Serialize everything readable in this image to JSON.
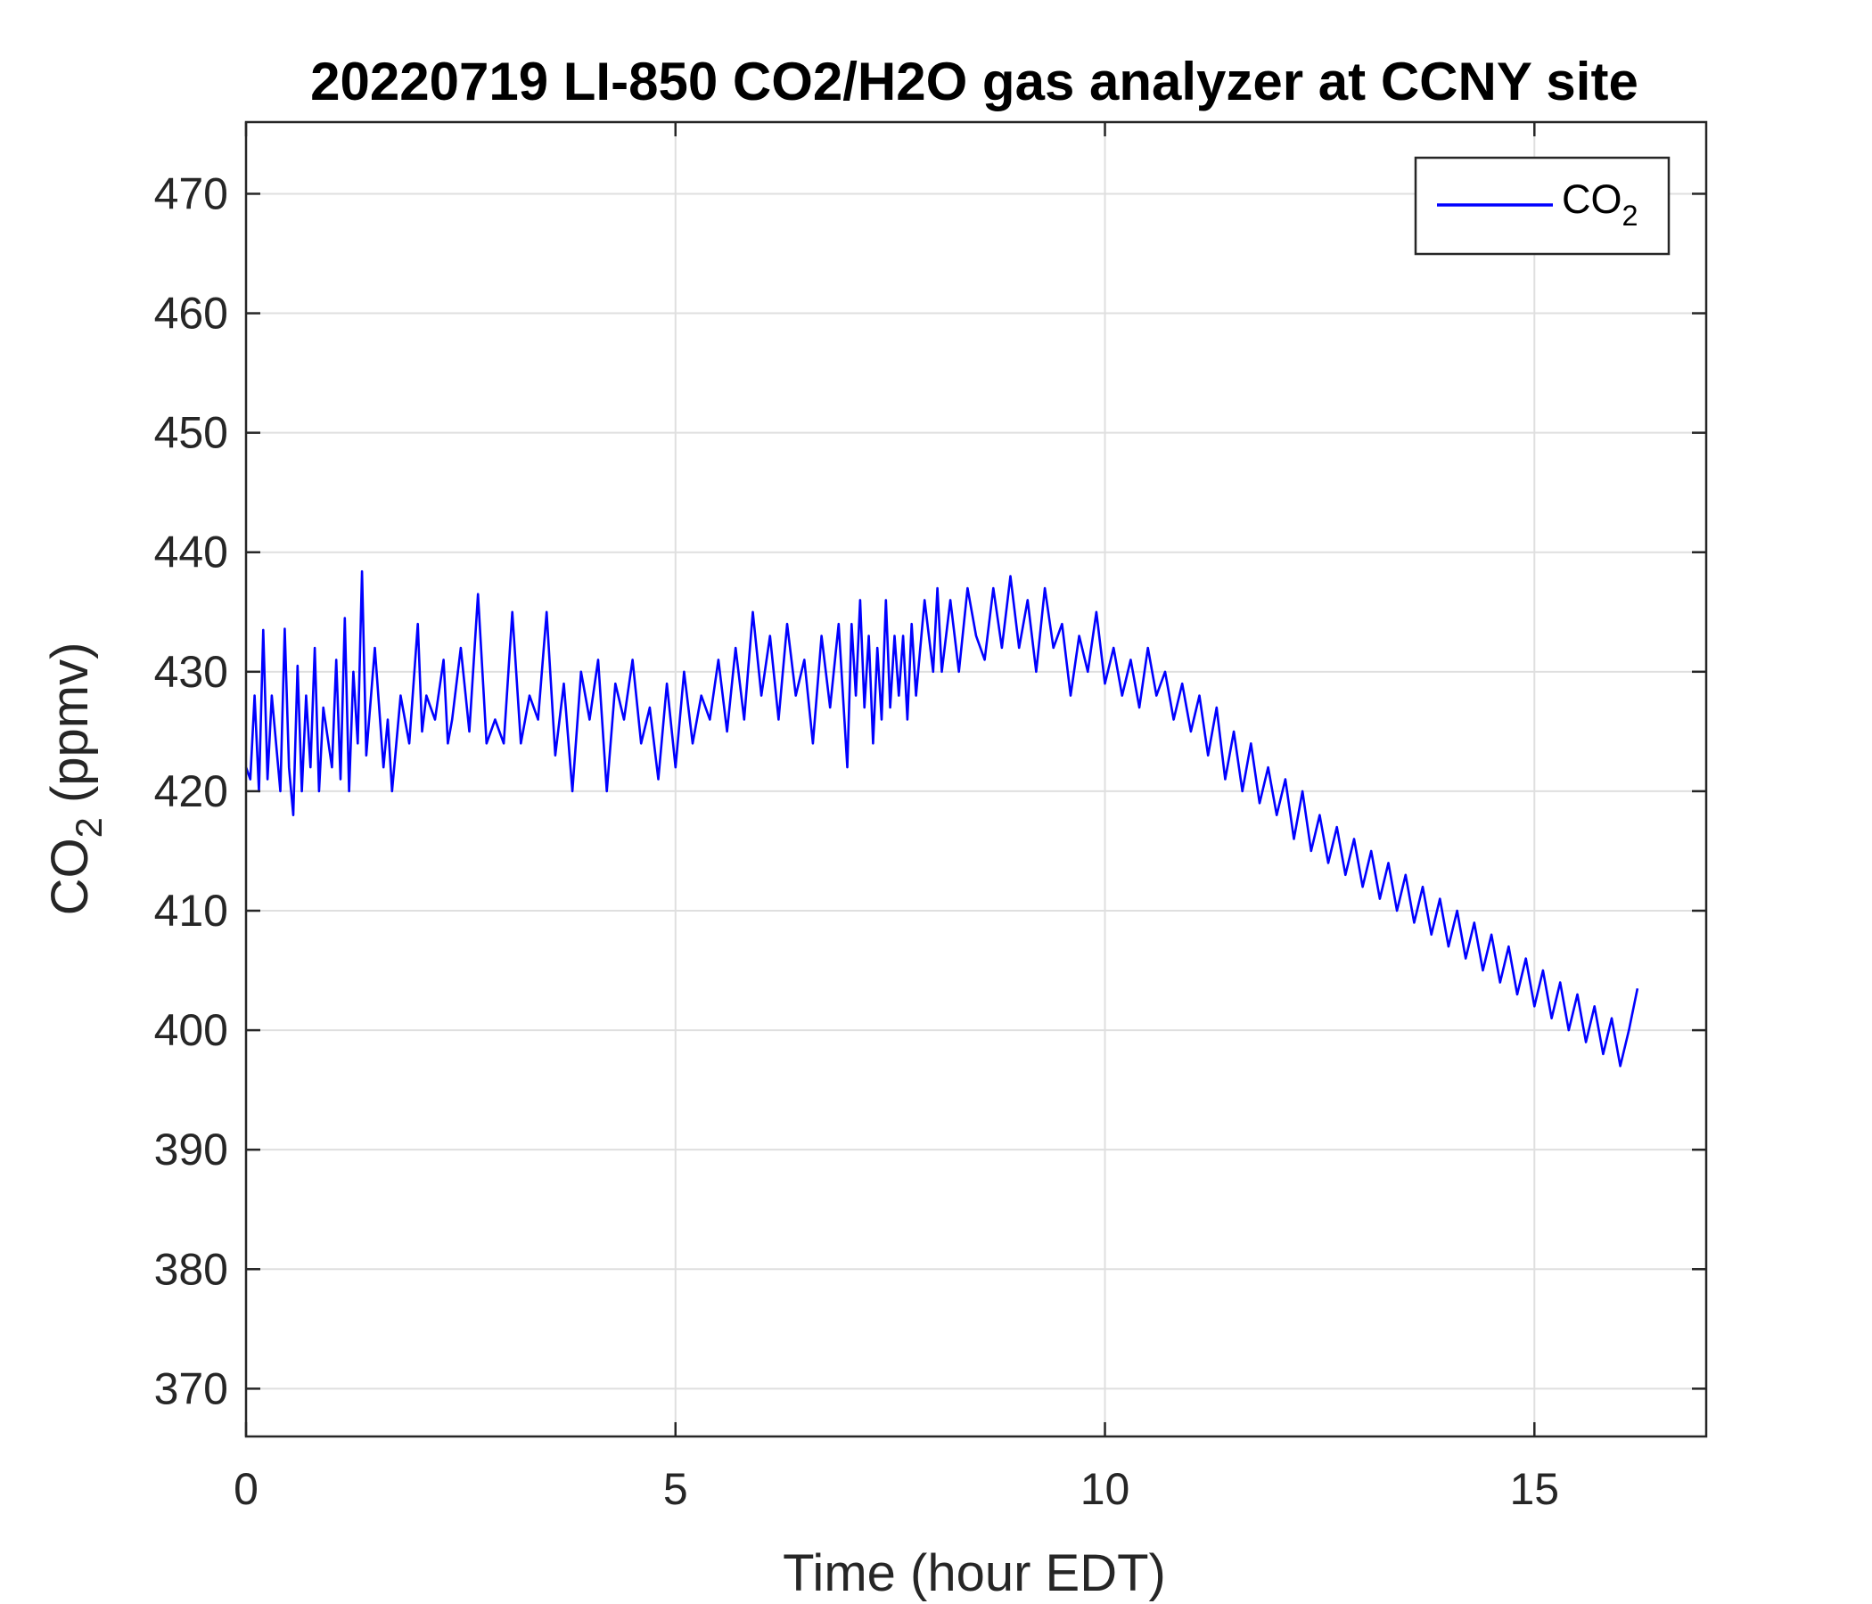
{
  "chart_data": {
    "type": "line",
    "title": "20220719 LI-850 CO2/H2O gas analyzer at CCNY site",
    "xlabel": "Time (hour EDT)",
    "ylabel": {
      "main": "CO",
      "sub": "2",
      "rest": " (ppmv)"
    },
    "xlim": [
      0,
      17
    ],
    "ylim": [
      366,
      476
    ],
    "xticks": [
      0,
      5,
      10,
      15
    ],
    "xtick_labels": [
      "0",
      "5",
      "10",
      "15"
    ],
    "yticks": [
      370,
      380,
      390,
      400,
      410,
      420,
      430,
      440,
      450,
      460,
      470
    ],
    "ytick_labels": [
      "370",
      "380",
      "390",
      "400",
      "410",
      "420",
      "430",
      "440",
      "450",
      "460",
      "470"
    ],
    "grid": true,
    "legend": {
      "position": "top-right",
      "entries": [
        {
          "main": "CO",
          "sub": "2"
        }
      ]
    },
    "series": [
      {
        "name": "CO2",
        "color": "#0000ff",
        "anchors": [
          [
            0.0,
            422
          ],
          [
            0.05,
            421
          ],
          [
            0.1,
            428
          ],
          [
            0.15,
            420
          ],
          [
            0.2,
            433.5
          ],
          [
            0.25,
            421
          ],
          [
            0.3,
            428
          ],
          [
            0.4,
            420
          ],
          [
            0.45,
            433.6
          ],
          [
            0.5,
            422
          ],
          [
            0.55,
            418
          ],
          [
            0.6,
            430.5
          ],
          [
            0.65,
            420
          ],
          [
            0.7,
            428
          ],
          [
            0.75,
            422
          ],
          [
            0.8,
            432
          ],
          [
            0.85,
            420
          ],
          [
            0.9,
            427
          ],
          [
            1.0,
            422
          ],
          [
            1.05,
            431
          ],
          [
            1.1,
            421
          ],
          [
            1.15,
            434.5
          ],
          [
            1.2,
            420
          ],
          [
            1.25,
            430
          ],
          [
            1.3,
            424
          ],
          [
            1.35,
            438.4
          ],
          [
            1.4,
            423
          ],
          [
            1.5,
            432
          ],
          [
            1.6,
            422
          ],
          [
            1.65,
            426
          ],
          [
            1.7,
            420
          ],
          [
            1.8,
            428
          ],
          [
            1.9,
            424
          ],
          [
            2.0,
            434
          ],
          [
            2.05,
            425
          ],
          [
            2.1,
            428
          ],
          [
            2.2,
            426
          ],
          [
            2.3,
            431
          ],
          [
            2.35,
            424
          ],
          [
            2.4,
            426
          ],
          [
            2.5,
            432
          ],
          [
            2.6,
            425
          ],
          [
            2.7,
            436.5
          ],
          [
            2.8,
            424
          ],
          [
            2.9,
            426
          ],
          [
            3.0,
            424
          ],
          [
            3.1,
            435
          ],
          [
            3.2,
            424
          ],
          [
            3.3,
            428
          ],
          [
            3.4,
            426
          ],
          [
            3.5,
            435
          ],
          [
            3.6,
            423
          ],
          [
            3.7,
            429
          ],
          [
            3.8,
            420
          ],
          [
            3.9,
            430
          ],
          [
            4.0,
            426
          ],
          [
            4.1,
            431
          ],
          [
            4.2,
            420
          ],
          [
            4.3,
            429
          ],
          [
            4.4,
            426
          ],
          [
            4.5,
            431
          ],
          [
            4.6,
            424
          ],
          [
            4.7,
            427
          ],
          [
            4.8,
            421
          ],
          [
            4.9,
            429
          ],
          [
            5.0,
            422
          ],
          [
            5.1,
            430
          ],
          [
            5.2,
            424
          ],
          [
            5.3,
            428
          ],
          [
            5.4,
            426
          ],
          [
            5.5,
            431
          ],
          [
            5.6,
            425
          ],
          [
            5.7,
            432
          ],
          [
            5.8,
            426
          ],
          [
            5.9,
            435
          ],
          [
            6.0,
            428
          ],
          [
            6.1,
            433
          ],
          [
            6.2,
            426
          ],
          [
            6.3,
            434
          ],
          [
            6.4,
            428
          ],
          [
            6.5,
            431
          ],
          [
            6.6,
            424
          ],
          [
            6.7,
            433
          ],
          [
            6.8,
            427
          ],
          [
            6.9,
            434
          ],
          [
            7.0,
            422
          ],
          [
            7.05,
            434
          ],
          [
            7.1,
            428
          ],
          [
            7.15,
            436
          ],
          [
            7.2,
            427
          ],
          [
            7.25,
            433
          ],
          [
            7.3,
            424
          ],
          [
            7.35,
            432
          ],
          [
            7.4,
            426
          ],
          [
            7.45,
            436
          ],
          [
            7.5,
            427
          ],
          [
            7.55,
            433
          ],
          [
            7.6,
            428
          ],
          [
            7.65,
            433
          ],
          [
            7.7,
            426
          ],
          [
            7.75,
            434
          ],
          [
            7.8,
            428
          ],
          [
            7.9,
            436
          ],
          [
            8.0,
            430
          ],
          [
            8.05,
            437
          ],
          [
            8.1,
            430
          ],
          [
            8.2,
            436
          ],
          [
            8.3,
            430
          ],
          [
            8.4,
            437
          ],
          [
            8.5,
            433
          ],
          [
            8.6,
            431
          ],
          [
            8.7,
            437
          ],
          [
            8.8,
            432
          ],
          [
            8.9,
            438
          ],
          [
            9.0,
            432
          ],
          [
            9.1,
            436
          ],
          [
            9.2,
            430
          ],
          [
            9.3,
            437
          ],
          [
            9.4,
            432
          ],
          [
            9.5,
            434
          ],
          [
            9.6,
            428
          ],
          [
            9.7,
            433
          ],
          [
            9.8,
            430
          ],
          [
            9.9,
            435
          ],
          [
            10.0,
            429
          ],
          [
            10.1,
            432
          ],
          [
            10.2,
            428
          ],
          [
            10.3,
            431
          ],
          [
            10.4,
            427
          ],
          [
            10.5,
            432
          ],
          [
            10.6,
            428
          ],
          [
            10.7,
            430
          ],
          [
            10.8,
            426
          ],
          [
            10.9,
            429
          ],
          [
            11.0,
            425
          ],
          [
            11.1,
            428
          ],
          [
            11.2,
            423
          ],
          [
            11.3,
            427
          ],
          [
            11.4,
            421
          ],
          [
            11.5,
            425
          ],
          [
            11.6,
            420
          ],
          [
            11.7,
            424
          ],
          [
            11.8,
            419
          ],
          [
            11.9,
            422
          ],
          [
            12.0,
            418
          ],
          [
            12.1,
            421
          ],
          [
            12.2,
            416
          ],
          [
            12.3,
            420
          ],
          [
            12.4,
            415
          ],
          [
            12.5,
            418
          ],
          [
            12.6,
            414
          ],
          [
            12.7,
            417
          ],
          [
            12.8,
            413
          ],
          [
            12.9,
            416
          ],
          [
            13.0,
            412
          ],
          [
            13.1,
            415
          ],
          [
            13.2,
            411
          ],
          [
            13.3,
            414
          ],
          [
            13.4,
            410
          ],
          [
            13.5,
            413
          ],
          [
            13.6,
            409
          ],
          [
            13.7,
            412
          ],
          [
            13.8,
            408
          ],
          [
            13.9,
            411
          ],
          [
            14.0,
            407
          ],
          [
            14.1,
            410
          ],
          [
            14.2,
            406
          ],
          [
            14.3,
            409
          ],
          [
            14.4,
            405
          ],
          [
            14.5,
            408
          ],
          [
            14.6,
            404
          ],
          [
            14.7,
            407
          ],
          [
            14.8,
            403
          ],
          [
            14.9,
            406
          ],
          [
            15.0,
            402
          ],
          [
            15.1,
            405
          ],
          [
            15.2,
            401
          ],
          [
            15.3,
            404
          ],
          [
            15.4,
            400
          ],
          [
            15.5,
            403
          ],
          [
            15.6,
            399
          ],
          [
            15.7,
            402
          ],
          [
            15.8,
            398
          ],
          [
            15.9,
            401
          ],
          [
            16.0,
            397
          ],
          [
            16.1,
            400
          ],
          [
            16.2,
            403.5
          ]
        ]
      }
    ]
  }
}
